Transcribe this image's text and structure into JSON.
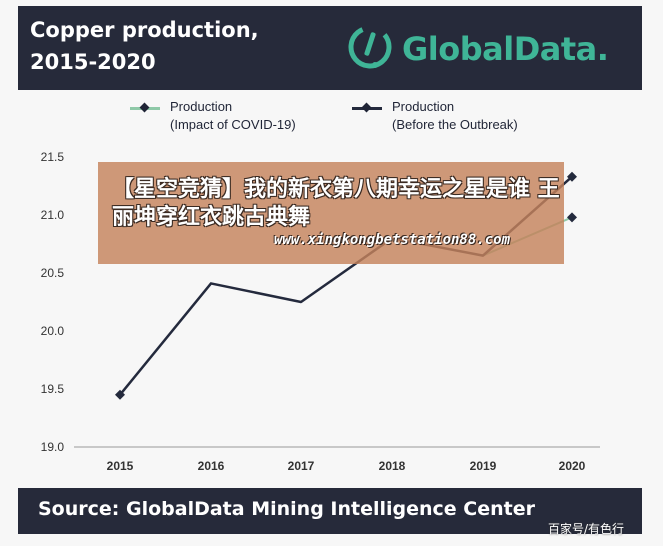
{
  "header": {
    "title": "Copper production,\n2015-2020",
    "brand": "GlobalData."
  },
  "colors": {
    "header_bg": "#262a3a",
    "brand": "#3fb597",
    "covid_series": "#8fc9a8",
    "outbreak_series": "#242a3d",
    "overlay": "#c4825c"
  },
  "legend": {
    "items": [
      {
        "label": "Production\n(Impact of COVID-19)",
        "color": "#8fc9a8",
        "marker": "diamond"
      },
      {
        "label": "Production\n(Before the Outbreak)",
        "color": "#242a3d",
        "marker": "diamond"
      }
    ]
  },
  "chart_data": {
    "type": "line",
    "title": "Copper production, 2015-2020",
    "x": [
      "2015",
      "2016",
      "2017",
      "2018",
      "2019",
      "2020"
    ],
    "ylim": [
      19.0,
      21.5
    ],
    "yticks": [
      "19.0",
      "19.5",
      "20.0",
      "20.5",
      "21.0",
      "21.5"
    ],
    "grid": false,
    "legend": "top",
    "series": [
      {
        "name": "Production (Impact of COVID-19)",
        "values": [
          null,
          null,
          null,
          null,
          20.65,
          20.98
        ],
        "color": "#8fc9a8"
      },
      {
        "name": "Production (Before the Outbreak)",
        "values": [
          19.45,
          20.41,
          20.25,
          20.8,
          20.65,
          21.33
        ],
        "color": "#242a3d"
      }
    ]
  },
  "footer": {
    "source": "Source:  GlobalData Mining Intelligence Center"
  },
  "overlay": {
    "headline": "【星空竞猜】我的新衣第八期幸运之星是谁 王丽坤穿红衣跳古典舞",
    "url": "www.xingkongbetstation88.com"
  },
  "credit": "百家号/有色行"
}
